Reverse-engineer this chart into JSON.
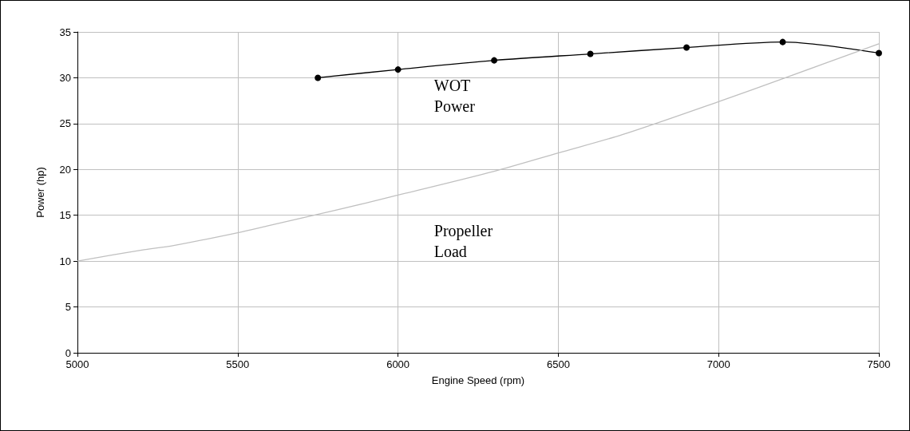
{
  "chart_data": {
    "type": "line",
    "xlabel": "Engine Speed (rpm)",
    "ylabel": "Power (hp)",
    "xlim": [
      5000,
      7500
    ],
    "xticks": [
      5000,
      5500,
      6000,
      6500,
      7000,
      7500
    ],
    "ylim": [
      0,
      35
    ],
    "yticks": [
      0,
      5,
      10,
      15,
      20,
      25,
      30,
      35
    ],
    "grid": true,
    "legend": false,
    "series": [
      {
        "name": "WOT Power",
        "color": "#000000",
        "marker": "circle",
        "x": [
          5750,
          6000,
          6300,
          6600,
          6900,
          7200,
          7500
        ],
        "values": [
          30.0,
          30.9,
          31.9,
          32.6,
          33.3,
          33.9,
          32.7
        ]
      },
      {
        "name": "Propeller Load",
        "color": "#c0c0c0",
        "marker": "none",
        "x": [
          5000,
          5200,
          5300,
          5500,
          5600,
          5800,
          6000,
          6300,
          6500,
          6700,
          7000,
          7200,
          7500
        ],
        "values": [
          10.0,
          11.2,
          11.7,
          13.1,
          13.9,
          15.5,
          17.2,
          19.8,
          21.8,
          23.8,
          27.4,
          29.9,
          33.7
        ]
      }
    ]
  }
}
